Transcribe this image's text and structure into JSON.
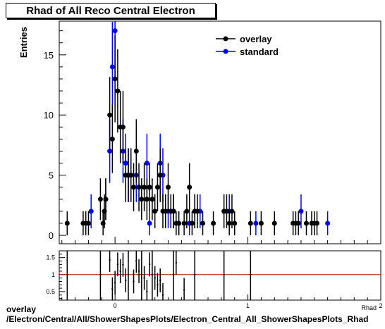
{
  "title": "Rhad of All Reco Central Electron",
  "footer": {
    "line1": "overlay",
    "line2": "/Electron/Central/All/ShowerShapesPlots/Electron_Central_All_ShowerShapesPlots_Rhad"
  },
  "colors": {
    "overlay": "#000000",
    "standard": "#0000ff",
    "ratio_line": "#cc0000",
    "frame": "#000000"
  },
  "chart_data": [
    {
      "type": "scatter",
      "title": "Rhad of All Reco Central Electron",
      "xlabel": "Rhad",
      "ylabel": "Entries",
      "xlim": [
        -0.42,
        2.0
      ],
      "ylim": [
        -0.7,
        17.8
      ],
      "yticks": [
        0,
        5,
        10,
        15
      ],
      "xticks": [
        0,
        1,
        2
      ],
      "legend": {
        "position": "top-right",
        "entries": [
          "overlay",
          "standard"
        ]
      },
      "series": [
        {
          "name": "overlay",
          "color": "#000000",
          "points": [
            [
              -0.36,
              1
            ],
            [
              -0.24,
              1
            ],
            [
              -0.22,
              1
            ],
            [
              -0.2,
              1
            ],
            [
              -0.11,
              3
            ],
            [
              -0.09,
              1
            ],
            [
              -0.08,
              2
            ],
            [
              -0.07,
              3
            ],
            [
              -0.04,
              10
            ],
            [
              -0.02,
              8
            ],
            [
              0.0,
              13
            ],
            [
              0.02,
              12
            ],
            [
              0.04,
              9
            ],
            [
              0.06,
              9
            ],
            [
              0.08,
              5
            ],
            [
              0.1,
              5
            ],
            [
              0.12,
              5
            ],
            [
              0.14,
              4
            ],
            [
              0.16,
              7
            ],
            [
              0.18,
              4
            ],
            [
              0.2,
              3
            ],
            [
              0.22,
              4
            ],
            [
              0.24,
              3
            ],
            [
              0.26,
              4
            ],
            [
              0.28,
              3
            ],
            [
              0.3,
              2
            ],
            [
              0.32,
              4
            ],
            [
              0.34,
              5
            ],
            [
              0.36,
              2
            ],
            [
              0.38,
              2
            ],
            [
              0.4,
              4
            ],
            [
              0.42,
              2
            ],
            [
              0.44,
              2
            ],
            [
              0.46,
              1
            ],
            [
              0.48,
              1
            ],
            [
              0.52,
              1
            ],
            [
              0.54,
              2
            ],
            [
              0.56,
              4
            ],
            [
              0.58,
              1
            ],
            [
              0.6,
              2
            ],
            [
              0.62,
              2
            ],
            [
              0.66,
              1
            ],
            [
              0.74,
              1
            ],
            [
              0.82,
              2
            ],
            [
              0.84,
              2
            ],
            [
              0.86,
              1
            ],
            [
              0.88,
              2
            ],
            [
              0.9,
              1
            ],
            [
              1.02,
              1
            ],
            [
              1.1,
              1
            ],
            [
              1.2,
              1
            ],
            [
              1.34,
              1
            ],
            [
              1.36,
              1
            ],
            [
              1.38,
              1
            ],
            [
              1.44,
              1
            ],
            [
              1.48,
              1
            ],
            [
              1.5,
              1
            ],
            [
              1.52,
              1
            ]
          ]
        },
        {
          "name": "standard",
          "color": "#0000ff",
          "points": [
            [
              -0.18,
              2
            ],
            [
              -0.07,
              3
            ],
            [
              -0.04,
              7
            ],
            [
              -0.02,
              14
            ],
            [
              0.0,
              17
            ],
            [
              0.06,
              7
            ],
            [
              0.08,
              6
            ],
            [
              0.1,
              5
            ],
            [
              0.16,
              5
            ],
            [
              0.24,
              6
            ],
            [
              0.26,
              1
            ],
            [
              0.34,
              6
            ],
            [
              0.36,
              5
            ],
            [
              0.4,
              2
            ],
            [
              0.44,
              2
            ],
            [
              0.48,
              1
            ],
            [
              0.56,
              1
            ],
            [
              0.6,
              2
            ],
            [
              0.64,
              2
            ],
            [
              0.86,
              2
            ],
            [
              1.06,
              1
            ],
            [
              1.4,
              2
            ],
            [
              1.6,
              1
            ]
          ]
        }
      ]
    },
    {
      "type": "scatter",
      "title": "",
      "xlabel": "Rhad",
      "ylabel": "",
      "xlim": [
        -0.42,
        2.0
      ],
      "ylim": [
        0.25,
        1.7
      ],
      "yticks": [
        0.5,
        1,
        1.5
      ],
      "xticks": [
        0,
        1,
        2
      ],
      "reference_line": 1,
      "series": [
        {
          "name": "ratio",
          "color": "#000000",
          "points": [
            [
              -0.36,
              1.0
            ],
            [
              -0.11,
              1.0
            ],
            [
              -0.04,
              1.43
            ],
            [
              -0.02,
              0.57
            ],
            [
              0.0,
              0.76
            ],
            [
              0.02,
              1.3
            ],
            [
              0.04,
              1.1
            ],
            [
              0.06,
              1.29
            ],
            [
              0.08,
              0.83
            ],
            [
              0.1,
              1.0
            ],
            [
              0.14,
              0.8
            ],
            [
              0.16,
              1.4
            ],
            [
              0.18,
              1.1
            ],
            [
              0.2,
              1.0
            ],
            [
              0.22,
              0.9
            ],
            [
              0.24,
              0.5
            ],
            [
              0.26,
              1.3
            ],
            [
              0.28,
              1.0
            ],
            [
              0.3,
              0.9
            ],
            [
              0.32,
              0.7
            ],
            [
              0.34,
              0.83
            ],
            [
              0.36,
              0.4
            ],
            [
              0.44,
              1.0
            ],
            [
              0.46,
              1.35
            ],
            [
              0.52,
              0.55
            ],
            [
              0.6,
              1.0
            ],
            [
              0.82,
              1.0
            ],
            [
              1.02,
              1.0
            ]
          ]
        }
      ]
    }
  ]
}
